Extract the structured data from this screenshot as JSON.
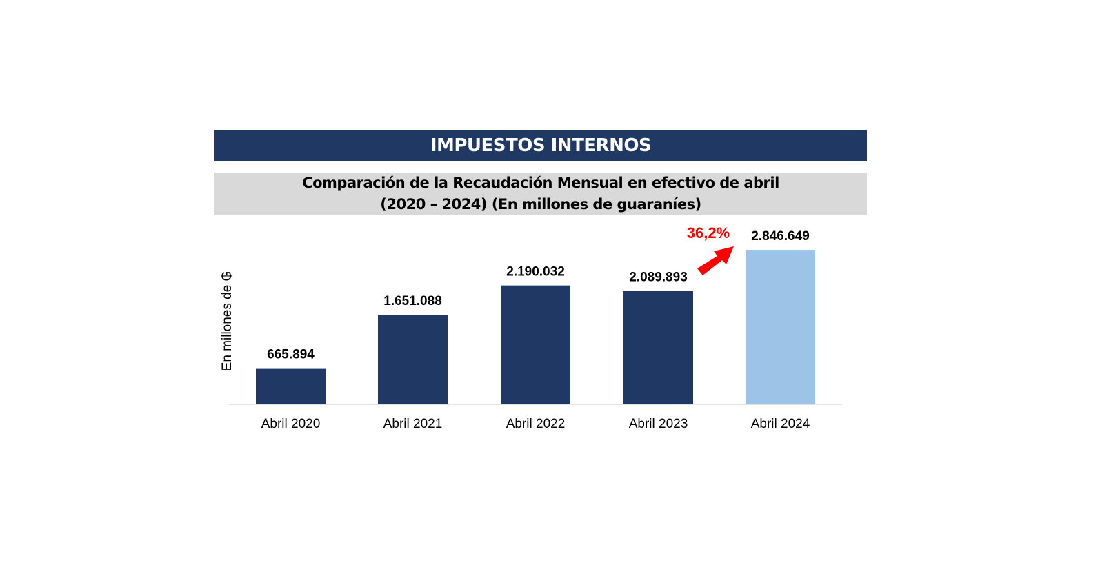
{
  "header": {
    "title": "IMPUESTOS INTERNOS"
  },
  "chart_data": {
    "type": "bar",
    "title": "Comparación de la Recaudación Mensual en efectivo de abril",
    "subtitle": "(2020 – 2024) (En millones de guaraníes)",
    "ylabel": "En millones de ₲",
    "xlabel": "",
    "categories": [
      "Abril 2020",
      "Abril 2021",
      "Abril 2022",
      "Abril 2023",
      "Abril 2024"
    ],
    "values": [
      665894,
      1651088,
      2190032,
      2089893,
      2846649
    ],
    "labels": [
      "665.894",
      "1.651.088",
      "2.190.032",
      "2.089.893",
      "2.846.649"
    ],
    "colors": [
      "#203864",
      "#203864",
      "#203864",
      "#203864",
      "#9dc3e6"
    ],
    "ylim": [
      0,
      2846649
    ],
    "grid": false,
    "annotation": {
      "text": "36,2%",
      "color": "#ff0000",
      "target": "Abril 2024"
    }
  }
}
